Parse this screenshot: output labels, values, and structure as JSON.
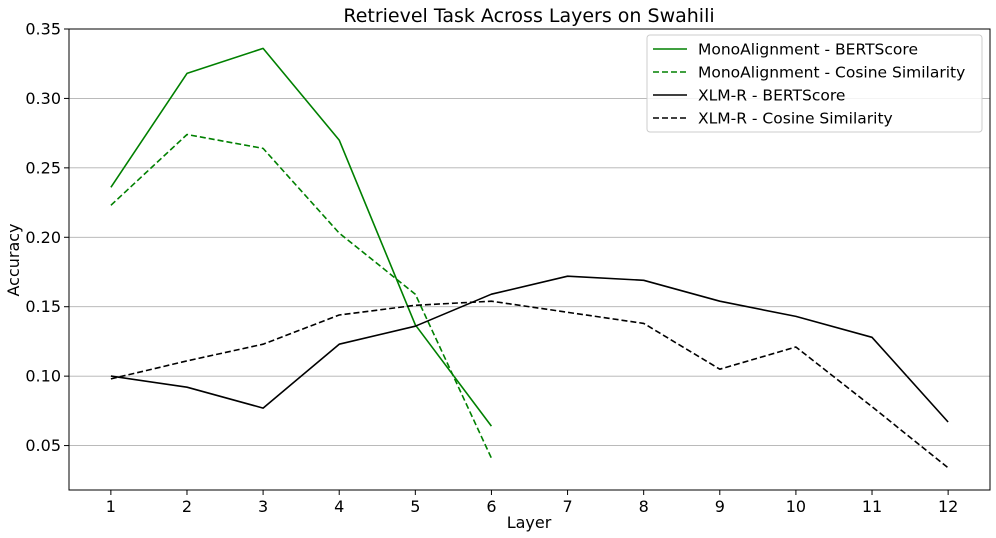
{
  "chart_data": {
    "type": "line",
    "title": "Retrievel Task Across Layers on Swahili",
    "xlabel": "Layer",
    "ylabel": "Accuracy",
    "x": [
      1,
      2,
      3,
      4,
      5,
      6,
      7,
      8,
      9,
      10,
      11,
      12
    ],
    "x_ticks": [
      "1",
      "2",
      "3",
      "4",
      "5",
      "6",
      "7",
      "8",
      "9",
      "10",
      "11",
      "12"
    ],
    "xlim": [
      0.45,
      12.55
    ],
    "ylim": [
      0.018,
      0.35
    ],
    "y_ticks": [
      "0.05",
      "0.10",
      "0.15",
      "0.20",
      "0.25",
      "0.30",
      "0.35"
    ],
    "grid": "horizontal",
    "legend_position": "top-right",
    "series": [
      {
        "name": "MonoAlignment - BERTScore",
        "color": "#008000",
        "style": "solid",
        "x": [
          1,
          2,
          3,
          4,
          5,
          6
        ],
        "values": [
          0.236,
          0.318,
          0.336,
          0.27,
          0.137,
          0.064
        ]
      },
      {
        "name": "MonoAlignment - Cosine Similarity",
        "color": "#008000",
        "style": "dashed",
        "x": [
          1,
          2,
          3,
          4,
          5,
          6
        ],
        "values": [
          0.223,
          0.274,
          0.264,
          0.203,
          0.159,
          0.041
        ]
      },
      {
        "name": "XLM-R - BERTScore",
        "color": "#000000",
        "style": "solid",
        "x": [
          1,
          2,
          3,
          4,
          5,
          6,
          7,
          8,
          9,
          10,
          11,
          12
        ],
        "values": [
          0.1,
          0.092,
          0.077,
          0.123,
          0.136,
          0.159,
          0.172,
          0.169,
          0.154,
          0.143,
          0.128,
          0.067
        ]
      },
      {
        "name": "XLM-R - Cosine Similarity",
        "color": "#000000",
        "style": "dashed",
        "x": [
          1,
          2,
          3,
          4,
          5,
          6,
          7,
          8,
          9,
          10,
          11,
          12
        ],
        "values": [
          0.098,
          0.111,
          0.123,
          0.144,
          0.151,
          0.154,
          0.146,
          0.138,
          0.105,
          0.121,
          0.078,
          0.034
        ]
      }
    ]
  }
}
